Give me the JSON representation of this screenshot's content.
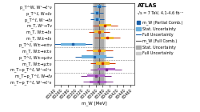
{
  "chart_data": {
    "type": "forest",
    "title": "ATLAS",
    "subtitle": "√s = 7 TeV, 4.1-4.6 fb⁻¹",
    "xlabel": "m_W [MeV]",
    "xlim": [
      80240,
      80470
    ],
    "xticks": [
      80240,
      80260,
      80280,
      80300,
      80320,
      80340,
      80360,
      80380,
      80400,
      80420,
      80440,
      80460
    ],
    "categories": [
      "m_T−p_T^ℓ, W⁺→ℓ⁺ν",
      "m_T−p_T^ℓ, W→ℓν",
      "m_T−p_T^ℓ, W⁺→ℓ⁺ν",
      "m_T, W±→μ±ν",
      "p_T^ℓ, W±→μ±ν",
      "m_T, W±→e±ν",
      "p_T^ℓ, W±→e±ν",
      "m_T, W±→ℓν",
      "m_T, W±→ℓν",
      "m_T, W⁺→Tν",
      "p_T^ℓ, W⁻→ℓν",
      "p_T^ℓ, W→ℓν",
      "p_T^W, W⁺→ℓ⁺ν"
    ],
    "values": [
      80367,
      80360,
      80390,
      80380,
      80355,
      80370,
      80295,
      80393,
      80370,
      80387,
      80364,
      80363,
      80370
    ],
    "stat_errors": [
      24,
      25,
      25,
      19,
      35,
      19,
      35,
      18,
      14,
      17,
      8,
      8,
      7
    ],
    "full_errors": [
      43,
      44,
      45,
      36,
      55,
      38,
      55,
      37,
      29,
      35,
      20,
      19,
      18
    ],
    "colors": [
      "#7b2d8b",
      "#7b2d8b",
      "#7b2d8b",
      "#cc3300",
      "#1a5fa8",
      "#cc3300",
      "#1a5fa8",
      "#cc3300",
      "#cc3300",
      "#cc3300",
      "#1a5fa8",
      "#1a5fa8",
      "#1a5fa8"
    ],
    "stat_colors": [
      "#b066c8",
      "#b066c8",
      "#b066c8",
      "#f0c030",
      "#6ab0de",
      "#f0c030",
      "#6ab0de",
      "#f0c030",
      "#f0c030",
      "#f0c030",
      "#6ab0de",
      "#6ab0de",
      "#6ab0de"
    ],
    "dashed_lines_below": [
      9,
      6,
      4,
      2
    ],
    "combined_value": 80370,
    "combined_stat": 13,
    "combined_full": 19,
    "combined_line_color": "#555555",
    "combined_stat_color": "#aaaaaa",
    "combined_full_color": "#cccccc",
    "legend": "upper left",
    "legend_entries": [
      {
        "name": "m_W (Partial Comb.)",
        "color": "#1a5fa8",
        "type": "marker"
      },
      {
        "name": "Stat. Uncertainty",
        "color": "#6ab0de",
        "type": "patch"
      },
      {
        "name": "Full Uncertainty",
        "color": "#1a5fa8",
        "type": "line"
      },
      {
        "name": "m_W (Full Comb.)",
        "color": "#555555",
        "type": "line"
      },
      {
        "name": "Stat. Uncertainty",
        "color": "#aaaaaa",
        "type": "patch"
      },
      {
        "name": "Full Uncertainty",
        "color": "#cccccc",
        "type": "patch"
      }
    ]
  }
}
